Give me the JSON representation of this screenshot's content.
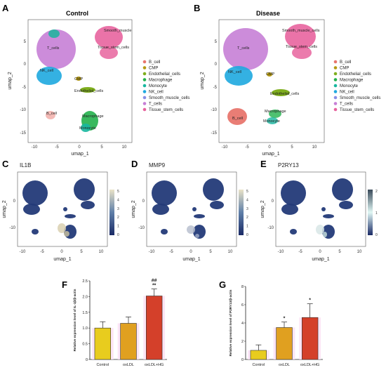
{
  "panels": {
    "A": {
      "letter": "A",
      "title": "Control"
    },
    "B": {
      "letter": "B",
      "title": "Disease"
    },
    "C": {
      "letter": "C",
      "gene": "IL1B"
    },
    "D": {
      "letter": "D",
      "gene": "MMP9"
    },
    "E": {
      "letter": "E",
      "gene": "P2RY13"
    },
    "F": {
      "letter": "F"
    },
    "G": {
      "letter": "G"
    }
  },
  "umap_axes": {
    "xlabel": "umap_1",
    "ylabel": "umap_2",
    "xticks_top": [
      "-10",
      "-5",
      "0",
      "5",
      "10"
    ],
    "yticks_top": [
      "5",
      "0",
      "-5",
      "-10",
      "-15"
    ],
    "xticks_bottom": [
      "-10",
      "-5",
      "0",
      "5",
      "10"
    ],
    "yticks_bottom": [
      "0",
      "-10"
    ]
  },
  "cluster_labels_control": [
    "Smooth_muscle",
    "Tissue_stem_cells",
    "T_cells",
    "NK_cell",
    "CMP",
    "Endothelial_cells",
    "B_cell",
    "Macrophage",
    "Monocyte"
  ],
  "cluster_labels_disease": [
    "Smooth_muscle_cells",
    "Tissue_stem_cells",
    "T_cells",
    "NK_cell",
    "CMP",
    "Endothelial_cells",
    "B_cell",
    "Macrophage",
    "Monocyte"
  ],
  "legend": [
    {
      "name": "B_cell",
      "color": "#e8766e"
    },
    {
      "name": "CMP",
      "color": "#b59a12"
    },
    {
      "name": "Endothelial_cells",
      "color": "#7fae1e"
    },
    {
      "name": "Macrophage",
      "color": "#23b14d"
    },
    {
      "name": "Monocyte",
      "color": "#18b7a0"
    },
    {
      "name": "NK_cell",
      "color": "#1ea9df"
    },
    {
      "name": "Smooth_muscle_cells",
      "color": "#8a8fe6"
    },
    {
      "name": "T_cells",
      "color": "#c77fd6"
    },
    {
      "name": "Tissue_stem_cells",
      "color": "#e8649e"
    }
  ],
  "colorbars": {
    "C": [
      "5",
      "4",
      "3",
      "2",
      "1",
      "0"
    ],
    "D": [
      "5",
      "4",
      "3",
      "2",
      "1",
      "0"
    ],
    "E": [
      "2",
      "1",
      "0"
    ]
  },
  "chart_data": [
    {
      "type": "bar",
      "panel": "F",
      "categories": [
        "Control",
        "oxLDL",
        "oxLDL+HG"
      ],
      "values": [
        1.0,
        1.15,
        2.02
      ],
      "errors": [
        0.2,
        0.2,
        0.22
      ],
      "annotations": [
        "",
        "",
        "##\n**"
      ],
      "ylabel": "Relative expression level of IL-1β/β-actin",
      "ylim": [
        0,
        2.5
      ],
      "yticks": [
        "0",
        "0.5",
        "1.0",
        "1.5",
        "2.0",
        "2.5"
      ],
      "colors": [
        "#e8cc1e",
        "#e0a020",
        "#d4402a"
      ]
    },
    {
      "type": "bar",
      "panel": "G",
      "categories": [
        "Control",
        "oxLDL",
        "oxLDL+HG"
      ],
      "values": [
        1.0,
        3.5,
        4.6
      ],
      "errors": [
        0.6,
        0.6,
        1.5
      ],
      "annotations": [
        "",
        "*",
        "*"
      ],
      "ylabel": "Relative expression level of P2RY13/β-actin",
      "ylim": [
        0,
        8
      ],
      "yticks": [
        "0",
        "2",
        "4",
        "6",
        "8"
      ],
      "colors": [
        "#e8cc1e",
        "#e0a020",
        "#d4402a"
      ]
    }
  ]
}
